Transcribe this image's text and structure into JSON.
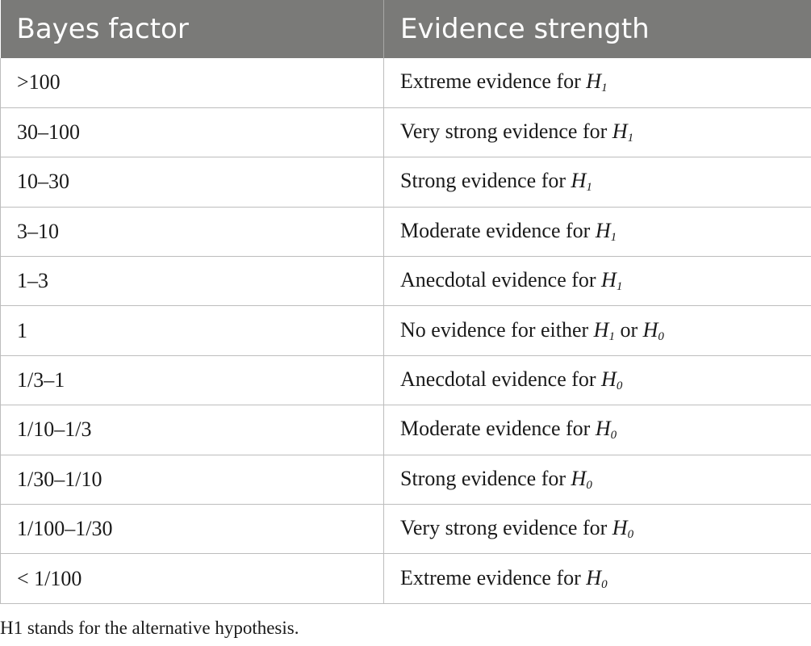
{
  "table": {
    "headers": [
      "Bayes factor",
      "Evidence strength"
    ],
    "rows": [
      {
        "factor": ">100",
        "text": "Extreme evidence for ",
        "h1": "H",
        "h1_sub": "1",
        "mid": "",
        "h2": "",
        "h2_sub": ""
      },
      {
        "factor": "30–100",
        "text": "Very strong evidence for ",
        "h1": "H",
        "h1_sub": "1",
        "mid": "",
        "h2": "",
        "h2_sub": ""
      },
      {
        "factor": "10–30",
        "text": "Strong evidence for ",
        "h1": "H",
        "h1_sub": "1",
        "mid": "",
        "h2": "",
        "h2_sub": ""
      },
      {
        "factor": "3–10",
        "text": "Moderate evidence for ",
        "h1": "H",
        "h1_sub": "1",
        "mid": "",
        "h2": "",
        "h2_sub": ""
      },
      {
        "factor": "1–3",
        "text": "Anecdotal evidence for ",
        "h1": "H",
        "h1_sub": "1",
        "mid": "",
        "h2": "",
        "h2_sub": ""
      },
      {
        "factor": "1",
        "text": "No evidence for either ",
        "h1": "H",
        "h1_sub": "1",
        "mid": " or ",
        "h2": "H",
        "h2_sub": "0"
      },
      {
        "factor": "1/3–1",
        "text": "Anecdotal evidence for ",
        "h1": "H",
        "h1_sub": "0",
        "mid": "",
        "h2": "",
        "h2_sub": ""
      },
      {
        "factor": "1/10–1/3",
        "text": "Moderate evidence for ",
        "h1": "H",
        "h1_sub": "0",
        "mid": "",
        "h2": "",
        "h2_sub": ""
      },
      {
        "factor": "1/30–1/10",
        "text": "Strong evidence for ",
        "h1": "H",
        "h1_sub": "0",
        "mid": "",
        "h2": "",
        "h2_sub": ""
      },
      {
        "factor": "1/100–1/30",
        "text": "Very strong evidence for ",
        "h1": "H",
        "h1_sub": "0",
        "mid": "",
        "h2": "",
        "h2_sub": ""
      },
      {
        "factor": "< 1/100",
        "text": "Extreme evidence for ",
        "h1": "H",
        "h1_sub": "0",
        "mid": "",
        "h2": "",
        "h2_sub": ""
      }
    ]
  },
  "footnote": "H1 stands for the alternative hypothesis.",
  "colors": {
    "header_bg": "#7a7a78",
    "header_text": "#ffffff",
    "grid": "#bdbdbd",
    "body_text": "#1a1a1a"
  }
}
